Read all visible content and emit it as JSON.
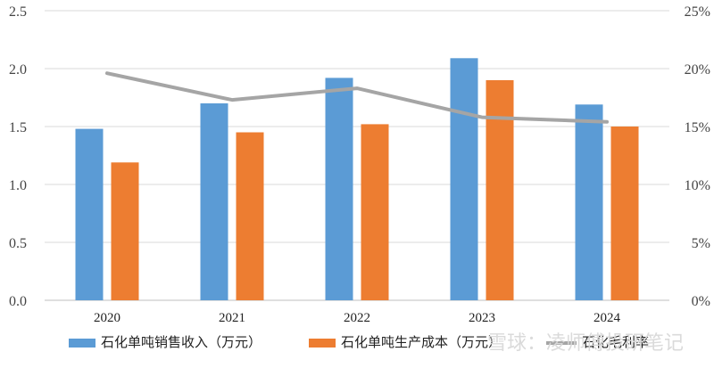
{
  "chart_data": {
    "type": "bar",
    "categories": [
      "2020",
      "2021",
      "2022",
      "2023",
      "2024"
    ],
    "series": [
      {
        "name": "石化单吨销售收入（万元）",
        "type": "bar",
        "axis": "left",
        "color": "#5b9bd5",
        "values": [
          1.48,
          1.7,
          1.92,
          2.09,
          1.69
        ]
      },
      {
        "name": "石化单吨生产成本（万元）",
        "type": "bar",
        "axis": "left",
        "color": "#ed7d31",
        "values": [
          1.19,
          1.45,
          1.52,
          1.9,
          1.5
        ]
      },
      {
        "name": "石化毛利率",
        "type": "line",
        "axis": "right",
        "color": "#a5a5a5",
        "values": [
          0.196,
          0.173,
          0.183,
          0.158,
          0.154
        ]
      }
    ],
    "y_left": {
      "min": 0,
      "max": 2.5,
      "ticks": [
        "0.0",
        "0.5",
        "1.0",
        "1.5",
        "2.0",
        "2.5"
      ]
    },
    "y_right": {
      "min": 0,
      "max": 0.25,
      "ticks": [
        "0%",
        "5%",
        "10%",
        "15%",
        "20%",
        "25%"
      ]
    },
    "grid": true,
    "legend_position": "bottom"
  },
  "watermark": "雪球：凌师傅投研笔记"
}
